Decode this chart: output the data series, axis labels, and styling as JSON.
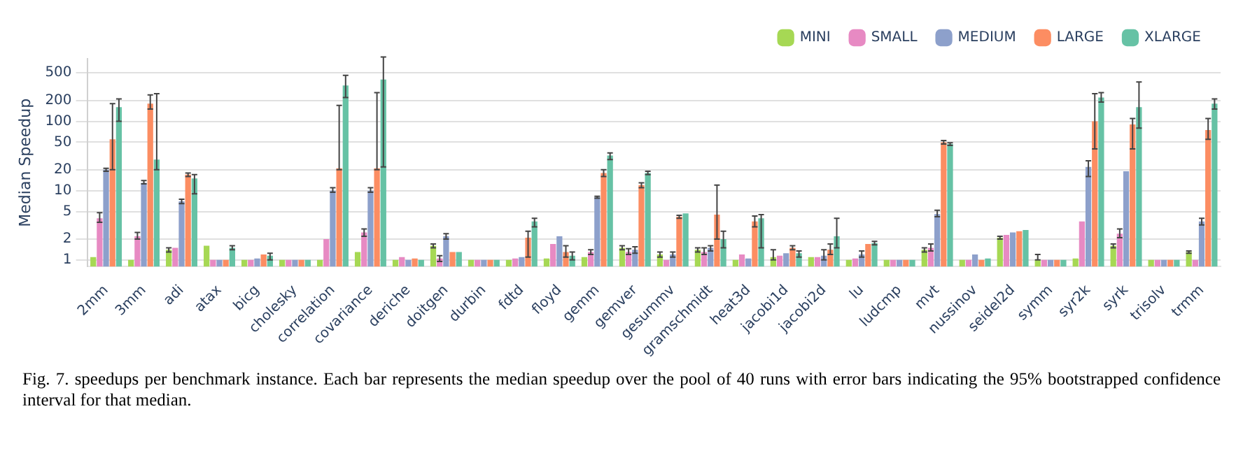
{
  "chart_data": {
    "type": "bar",
    "ylabel": "Median Speedup",
    "log": true,
    "grid": "y",
    "legend": "top right",
    "ylim": [
      0.8,
      800
    ],
    "yticks": [
      1,
      2,
      5,
      10,
      20,
      50,
      100,
      200,
      500
    ],
    "categories": [
      "2mm",
      "3mm",
      "adi",
      "atax",
      "bicg",
      "cholesky",
      "correlation",
      "covariance",
      "deriche",
      "doitgen",
      "durbin",
      "fdtd",
      "floyd",
      "gemm",
      "gemver",
      "gesummv",
      "gramschmidt",
      "heat3d",
      "jacobi1d",
      "jacobi2d",
      "lu",
      "ludcmp",
      "mvt",
      "nussinov",
      "seidel2d",
      "symm",
      "syr2k",
      "syrk",
      "trisolv",
      "trmm"
    ],
    "series": [
      {
        "name": "MINI",
        "color": "#a6d854",
        "values": [
          1.1,
          1,
          1.4,
          1.6,
          1,
          1,
          1,
          1.3,
          1,
          1.6,
          1,
          1,
          1.05,
          1.1,
          1.5,
          1.2,
          1.4,
          1,
          1.1,
          1.1,
          1,
          1,
          1.4,
          1,
          2.1,
          1,
          1.05,
          1.6,
          1,
          1.3
        ],
        "errors": [
          null,
          null,
          [
            1.3,
            1.5
          ],
          null,
          null,
          null,
          null,
          null,
          null,
          [
            1.5,
            1.7
          ],
          null,
          null,
          null,
          null,
          [
            1.4,
            1.6
          ],
          [
            1.1,
            1.3
          ],
          [
            1.3,
            1.5
          ],
          null,
          [
            1,
            1.4
          ],
          null,
          null,
          null,
          [
            1.3,
            1.5
          ],
          null,
          [
            2,
            2.2
          ],
          [
            1,
            1.2
          ],
          null,
          [
            1.5,
            1.7
          ],
          null,
          [
            1.25,
            1.35
          ]
        ]
      },
      {
        "name": "SMALL",
        "color": "#e78ac3",
        "values": [
          4,
          2.2,
          1.5,
          1,
          1,
          1,
          2,
          2.5,
          1.1,
          1.05,
          1,
          1.05,
          1.7,
          1.3,
          1.3,
          1,
          1.3,
          1.2,
          1.15,
          1.1,
          1.05,
          1,
          1.5,
          1,
          2.3,
          1,
          3.6,
          2.4,
          1,
          1
        ],
        "errors": [
          [
            3.5,
            4.8
          ],
          [
            2,
            2.5
          ],
          null,
          null,
          null,
          null,
          null,
          [
            2.2,
            2.8
          ],
          null,
          [
            0.95,
            1.15
          ],
          null,
          null,
          null,
          [
            1.2,
            1.4
          ],
          [
            1.2,
            1.45
          ],
          null,
          [
            1.2,
            1.5
          ],
          null,
          null,
          null,
          null,
          null,
          [
            1.35,
            1.7
          ],
          null,
          null,
          null,
          null,
          [
            2.1,
            2.8
          ],
          null,
          null
        ]
      },
      {
        "name": "MEDIUM",
        "color": "#8da0cb",
        "values": [
          20,
          13,
          7,
          1,
          1.05,
          1,
          10,
          10,
          1,
          2.2,
          1,
          1.1,
          2.2,
          8,
          1.4,
          1.2,
          1.5,
          1.05,
          1.25,
          1.15,
          1.2,
          1,
          4.6,
          1.2,
          2.5,
          1,
          22,
          19,
          1,
          3.6
        ],
        "errors": [
          [
            19,
            21
          ],
          [
            12.5,
            14
          ],
          [
            6.5,
            7.5
          ],
          null,
          null,
          null,
          [
            9.5,
            11
          ],
          [
            9.5,
            11
          ],
          null,
          [
            2,
            2.4
          ],
          null,
          null,
          null,
          [
            7.8,
            8.3
          ],
          [
            1.25,
            1.55
          ],
          [
            1.1,
            1.3
          ],
          [
            1.35,
            1.6
          ],
          null,
          null,
          [
            1,
            1.4
          ],
          [
            1.1,
            1.35
          ],
          null,
          [
            4.2,
            5.2
          ],
          null,
          null,
          null,
          [
            16,
            27
          ],
          null,
          null,
          [
            3.2,
            4
          ]
        ]
      },
      {
        "name": "LARGE",
        "color": "#fc8d62",
        "values": [
          55,
          180,
          17,
          1,
          1.2,
          1,
          21,
          21,
          1.05,
          1.3,
          1,
          2.1,
          1.3,
          18,
          12,
          4.2,
          4.5,
          3.6,
          1.5,
          1.4,
          1.7,
          1,
          50,
          1,
          2.6,
          1,
          100,
          90,
          1,
          75
        ],
        "errors": [
          [
            20,
            180
          ],
          [
            150,
            240
          ],
          [
            16,
            18
          ],
          null,
          null,
          null,
          [
            20,
            170
          ],
          [
            20,
            260
          ],
          null,
          null,
          null,
          [
            1.1,
            2.6
          ],
          [
            1.1,
            1.6
          ],
          [
            16,
            20
          ],
          [
            11,
            13
          ],
          [
            4,
            4.4
          ],
          [
            2,
            12
          ],
          [
            3,
            4.3
          ],
          [
            1.4,
            1.6
          ],
          [
            1.2,
            1.7
          ],
          null,
          null,
          [
            47,
            53
          ],
          null,
          null,
          null,
          [
            40,
            250
          ],
          [
            40,
            110
          ],
          null,
          [
            55,
            110
          ]
        ]
      },
      {
        "name": "XLARGE",
        "color": "#66c2a5",
        "values": [
          160,
          28,
          15,
          1.5,
          1.15,
          1,
          330,
          400,
          1,
          1.3,
          1,
          3.6,
          1.15,
          32,
          18,
          4.7,
          2,
          4,
          1.25,
          2.2,
          1.75,
          1,
          47,
          1.05,
          2.7,
          1,
          220,
          160,
          1,
          180
        ],
        "errors": [
          [
            100,
            210
          ],
          [
            20,
            250
          ],
          [
            9,
            17
          ],
          [
            1.4,
            1.6
          ],
          [
            1,
            1.25
          ],
          null,
          [
            220,
            460
          ],
          [
            22,
            850
          ],
          null,
          null,
          null,
          [
            3,
            4
          ],
          [
            1,
            1.3
          ],
          [
            28,
            35
          ],
          [
            17,
            19
          ],
          null,
          [
            1.5,
            2.6
          ],
          [
            1.5,
            4.5
          ],
          [
            1.1,
            1.35
          ],
          [
            1.5,
            4
          ],
          [
            1.65,
            1.85
          ],
          null,
          [
            45,
            49
          ],
          null,
          null,
          null,
          [
            190,
            260
          ],
          [
            80,
            370
          ],
          null,
          [
            150,
            210
          ]
        ]
      }
    ],
    "annotations": [
      "Fig. 7. speedups per benchmark instance. Each bar represents the median speedup over the pool of 40 runs with error bars indicating the 95% bootstrapped confidence interval for that median."
    ]
  }
}
